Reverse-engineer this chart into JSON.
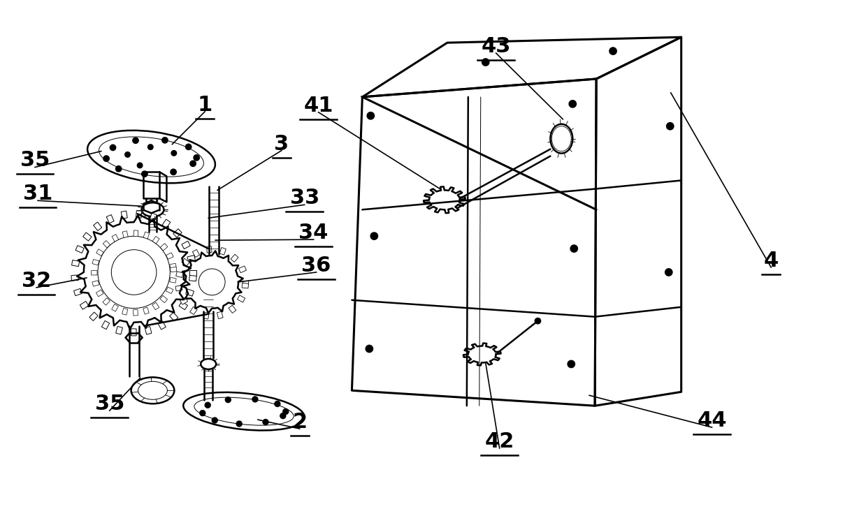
{
  "background_color": "#ffffff",
  "line_color": "#000000",
  "fig_width": 12.39,
  "fig_height": 7.52,
  "lw_main": 1.8,
  "lw_thick": 2.2,
  "label_fontsize": 22
}
